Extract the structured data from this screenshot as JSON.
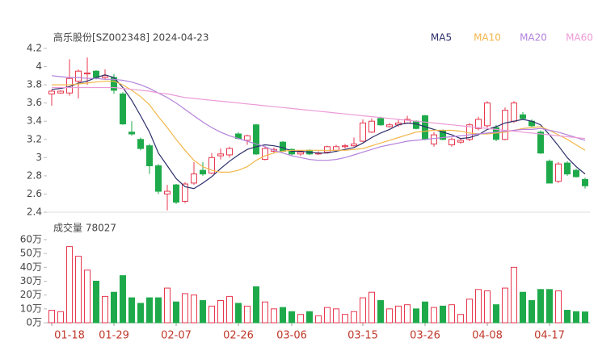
{
  "chart_data": [
    {
      "type": "candlestick",
      "title": "高乐股份[SZ002348] 2024-04-23",
      "categories": [
        "01-18",
        null,
        null,
        null,
        null,
        null,
        null,
        "01-29",
        null,
        null,
        null,
        null,
        null,
        null,
        "02-07",
        null,
        null,
        null,
        null,
        null,
        null,
        "02-26",
        null,
        null,
        null,
        null,
        null,
        "03-06",
        null,
        null,
        null,
        null,
        null,
        null,
        null,
        "03-15",
        null,
        null,
        null,
        null,
        null,
        null,
        "03-26",
        null,
        null,
        null,
        null,
        null,
        null,
        "04-08",
        null,
        null,
        null,
        null,
        null,
        null,
        "04-17",
        null,
        null,
        null,
        null
      ],
      "open": [
        3.7,
        3.71,
        3.71,
        3.84,
        3.92,
        3.95,
        3.88,
        3.88,
        3.7,
        3.28,
        3.2,
        3.13,
        2.91,
        2.6,
        2.7,
        2.52,
        2.72,
        2.86,
        2.83,
        3.02,
        3.03,
        3.26,
        3.19,
        3.36,
        2.98,
        3.07,
        3.17,
        3.09,
        3.04,
        3.08,
        3.04,
        3.06,
        3.08,
        3.12,
        3.13,
        3.18,
        3.28,
        3.43,
        3.34,
        3.36,
        3.38,
        3.4,
        3.46,
        3.15,
        3.3,
        3.14,
        3.17,
        3.2,
        3.32,
        3.35,
        3.33,
        3.2,
        3.4,
        3.47,
        3.4,
        3.28,
        2.96,
        2.74,
        2.94,
        2.86,
        2.76
      ],
      "high": [
        3.75,
        3.74,
        4.08,
        3.97,
        4.1,
        3.96,
        3.97,
        3.92,
        3.72,
        3.4,
        3.22,
        3.15,
        2.93,
        2.7,
        2.71,
        2.73,
        2.95,
        2.95,
        3.05,
        3.1,
        3.12,
        3.28,
        3.25,
        3.37,
        3.12,
        3.11,
        3.18,
        3.1,
        3.08,
        3.09,
        3.07,
        3.13,
        3.14,
        3.15,
        3.22,
        3.42,
        3.43,
        3.45,
        3.38,
        3.42,
        3.46,
        3.41,
        3.47,
        3.28,
        3.31,
        3.22,
        3.21,
        3.38,
        3.45,
        3.62,
        3.36,
        3.55,
        3.62,
        3.5,
        3.42,
        3.3,
        2.98,
        2.95,
        2.96,
        2.88,
        2.78
      ],
      "low": [
        3.57,
        3.7,
        3.68,
        3.65,
        3.8,
        3.86,
        3.86,
        3.7,
        3.36,
        3.24,
        3.08,
        2.82,
        2.6,
        2.42,
        2.49,
        2.5,
        2.7,
        2.8,
        2.82,
        2.98,
        3.0,
        3.2,
        3.14,
        3.03,
        2.97,
        3.05,
        3.06,
        3.02,
        3.02,
        3.03,
        3.03,
        3.05,
        3.06,
        3.1,
        3.12,
        3.17,
        3.27,
        3.35,
        3.33,
        3.34,
        3.37,
        3.31,
        3.19,
        3.12,
        3.19,
        3.12,
        3.15,
        3.18,
        3.3,
        3.33,
        3.18,
        3.19,
        3.38,
        3.42,
        3.33,
        3.04,
        2.72,
        2.72,
        2.8,
        2.78,
        2.66
      ],
      "close": [
        3.73,
        3.73,
        3.87,
        3.95,
        3.93,
        3.88,
        3.9,
        3.74,
        3.37,
        3.26,
        3.1,
        2.91,
        2.63,
        2.63,
        2.51,
        2.71,
        2.82,
        2.82,
        3.0,
        3.04,
        3.1,
        3.21,
        3.24,
        3.04,
        3.1,
        3.09,
        3.07,
        3.04,
        3.06,
        3.04,
        3.05,
        3.12,
        3.12,
        3.13,
        3.15,
        3.38,
        3.4,
        3.36,
        3.36,
        3.38,
        3.42,
        3.32,
        3.2,
        3.25,
        3.2,
        3.2,
        3.19,
        3.36,
        3.42,
        3.6,
        3.2,
        3.52,
        3.6,
        3.43,
        3.35,
        3.05,
        2.72,
        2.93,
        2.82,
        2.79,
        2.69
      ],
      "up_color": "#e8384f",
      "down_color": "#1eaa4a",
      "series": [
        {
          "name": "MA5",
          "color": "#2d2f6b",
          "values": [
            3.75,
            3.76,
            3.78,
            3.82,
            3.84,
            3.88,
            3.91,
            3.88,
            3.77,
            3.63,
            3.46,
            3.28,
            3.05,
            2.91,
            2.77,
            2.68,
            2.66,
            2.72,
            2.79,
            2.88,
            2.96,
            3.03,
            3.09,
            3.12,
            3.14,
            3.13,
            3.11,
            3.07,
            3.07,
            3.06,
            3.05,
            3.05,
            3.07,
            3.09,
            3.11,
            3.16,
            3.22,
            3.27,
            3.31,
            3.36,
            3.38,
            3.37,
            3.34,
            3.31,
            3.28,
            3.25,
            3.21,
            3.22,
            3.25,
            3.31,
            3.34,
            3.38,
            3.4,
            3.42,
            3.4,
            3.36,
            3.25,
            3.13,
            3.0,
            2.9,
            2.82
          ]
        },
        {
          "name": "MA10",
          "color": "#f3b64a",
          "values": [
            3.8,
            3.8,
            3.8,
            3.81,
            3.82,
            3.83,
            3.84,
            3.84,
            3.8,
            3.74,
            3.67,
            3.58,
            3.45,
            3.33,
            3.2,
            3.08,
            2.97,
            2.9,
            2.86,
            2.84,
            2.84,
            2.86,
            2.9,
            2.97,
            3.02,
            3.05,
            3.07,
            3.08,
            3.08,
            3.08,
            3.08,
            3.08,
            3.08,
            3.08,
            3.09,
            3.1,
            3.13,
            3.16,
            3.19,
            3.22,
            3.25,
            3.28,
            3.29,
            3.3,
            3.3,
            3.3,
            3.29,
            3.27,
            3.26,
            3.26,
            3.27,
            3.28,
            3.3,
            3.32,
            3.33,
            3.34,
            3.3,
            3.25,
            3.2,
            3.14,
            3.08
          ]
        },
        {
          "name": "MA20",
          "color": "#b482dc",
          "values": [
            3.9,
            3.89,
            3.88,
            3.88,
            3.87,
            3.87,
            3.86,
            3.86,
            3.85,
            3.83,
            3.8,
            3.76,
            3.71,
            3.66,
            3.6,
            3.53,
            3.46,
            3.39,
            3.33,
            3.28,
            3.24,
            3.21,
            3.18,
            3.15,
            3.12,
            3.08,
            3.05,
            3.02,
            3.0,
            2.98,
            2.97,
            2.97,
            2.98,
            3.0,
            3.03,
            3.06,
            3.09,
            3.12,
            3.14,
            3.16,
            3.18,
            3.19,
            3.2,
            3.21,
            3.22,
            3.23,
            3.24,
            3.25,
            3.26,
            3.27,
            3.28,
            3.29,
            3.3,
            3.31,
            3.31,
            3.32,
            3.3,
            3.28,
            3.25,
            3.22,
            3.19
          ]
        },
        {
          "name": "MA60",
          "color": "#ec9ad8",
          "values": [
            3.77,
            3.77,
            3.77,
            3.77,
            3.77,
            3.77,
            3.77,
            3.77,
            3.76,
            3.75,
            3.74,
            3.73,
            3.71,
            3.7,
            3.68,
            3.66,
            3.65,
            3.64,
            3.63,
            3.62,
            3.61,
            3.6,
            3.59,
            3.58,
            3.57,
            3.56,
            3.55,
            3.54,
            3.53,
            3.52,
            3.51,
            3.5,
            3.49,
            3.48,
            3.47,
            3.46,
            3.45,
            3.44,
            3.43,
            3.42,
            3.41,
            3.4,
            3.39,
            3.38,
            3.37,
            3.36,
            3.35,
            3.34,
            3.33,
            3.32,
            3.31,
            3.3,
            3.29,
            3.28,
            3.27,
            3.26,
            3.25,
            3.24,
            3.23,
            3.22,
            3.21
          ]
        }
      ],
      "ylim": [
        2.4,
        4.2
      ],
      "yticks": [
        2.4,
        2.6,
        2.8,
        3,
        3.2,
        3.4,
        3.6,
        3.8,
        4,
        4.2
      ]
    },
    {
      "type": "bar",
      "title": "成交量 78027",
      "values": [
        9,
        8,
        55,
        48,
        38,
        30,
        19,
        22,
        34,
        18,
        14,
        18,
        18,
        25,
        15,
        21,
        20,
        16,
        12,
        16,
        19,
        14,
        12,
        26,
        15,
        10,
        11,
        8,
        6,
        8,
        5,
        11,
        10,
        6,
        8,
        18,
        22,
        16,
        10,
        12,
        13,
        10,
        15,
        11,
        12,
        13,
        6,
        17,
        24,
        23,
        13,
        25,
        40,
        22,
        16,
        24,
        24,
        23,
        9,
        8,
        7.8
      ],
      "ylim": [
        0,
        60
      ],
      "yticks": [
        {
          "value": 0,
          "label": "0万"
        },
        {
          "value": 10,
          "label": "10万"
        },
        {
          "value": 20,
          "label": "20万"
        },
        {
          "value": 30,
          "label": "30万"
        },
        {
          "value": 40,
          "label": "40万"
        },
        {
          "value": 50,
          "label": "50万"
        },
        {
          "value": 60,
          "label": "60万"
        }
      ]
    }
  ]
}
